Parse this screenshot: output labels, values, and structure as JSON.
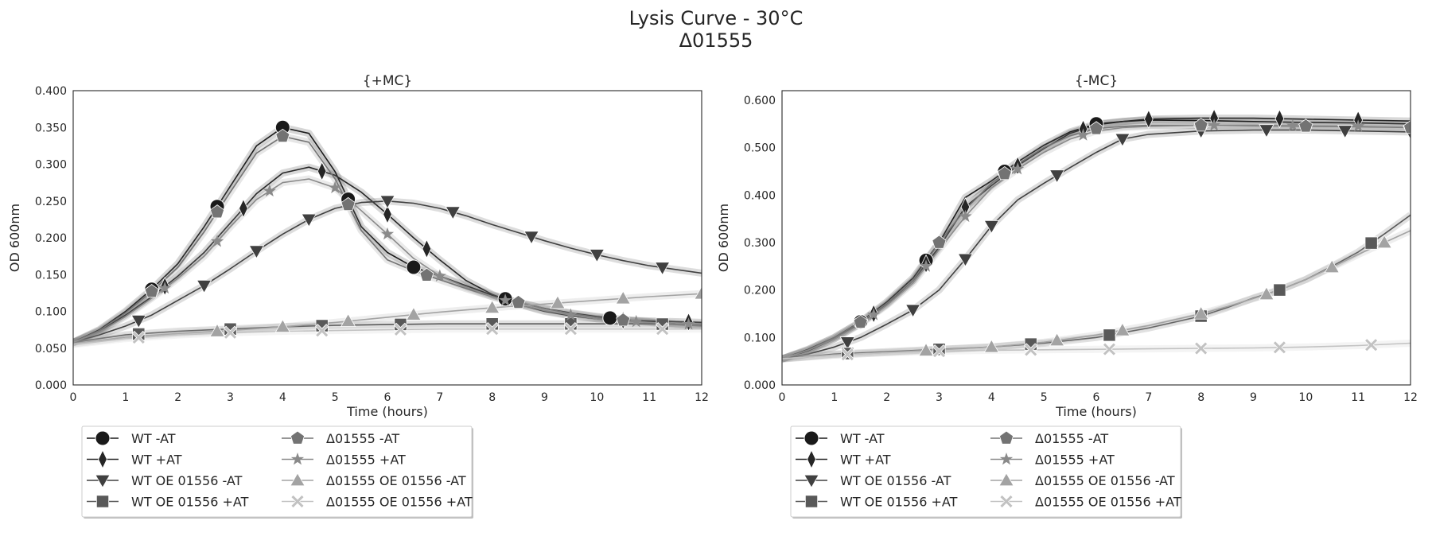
{
  "figure": {
    "title_line1": "Lysis Curve - 30°C",
    "title_line2": "Δ01555"
  },
  "legend": [
    {
      "label": "WT -AT",
      "marker": "circle",
      "color": "#1a1a1a"
    },
    {
      "label": "WT +AT",
      "marker": "diamond",
      "color": "#262626"
    },
    {
      "label": "WT OE 01556 -AT",
      "marker": "triangle-down",
      "color": "#404040"
    },
    {
      "label": "WT OE 01556 +AT",
      "marker": "square",
      "color": "#595959"
    },
    {
      "label": "Δ01555 -AT",
      "marker": "pentagon",
      "color": "#737373"
    },
    {
      "label": "Δ01555 +AT",
      "marker": "star",
      "color": "#8a8a8a"
    },
    {
      "label": "Δ01555 OE 01556 -AT",
      "marker": "triangle-up",
      "color": "#a3a3a3"
    },
    {
      "label": "Δ01555 OE 01556 +AT",
      "marker": "x",
      "color": "#c2c2c2"
    }
  ],
  "chart_data": [
    {
      "type": "line",
      "title": "{+MC}",
      "xlabel": "Time (hours)",
      "ylabel": "OD 600nm",
      "xlim": [
        0,
        12
      ],
      "ylim": [
        0,
        0.4
      ],
      "xticks": [
        0,
        1,
        2,
        3,
        4,
        5,
        6,
        7,
        8,
        9,
        10,
        11,
        12
      ],
      "yticks": [
        0,
        0.05,
        0.1,
        0.15,
        0.2,
        0.25,
        0.3,
        0.35,
        0.4
      ],
      "ytick_labels": [
        "0.000",
        "0.050",
        "0.100",
        "0.150",
        "0.200",
        "0.250",
        "0.300",
        "0.350",
        "0.400"
      ],
      "grid": false,
      "series": [
        {
          "name": "WT -AT",
          "marker_x": [
            1.5,
            2.75,
            4.0,
            5.25,
            6.5,
            8.25,
            10.25
          ],
          "x": [
            0,
            0.5,
            1,
            1.5,
            2,
            2.5,
            3,
            3.5,
            4,
            4.5,
            5,
            5.5,
            6,
            6.5,
            7,
            7.5,
            8,
            8.5,
            9,
            9.5,
            10,
            10.5,
            11,
            11.5,
            12
          ],
          "y": [
            0.058,
            0.075,
            0.1,
            0.13,
            0.165,
            0.215,
            0.27,
            0.325,
            0.35,
            0.342,
            0.29,
            0.215,
            0.18,
            0.16,
            0.148,
            0.135,
            0.122,
            0.112,
            0.104,
            0.098,
            0.093,
            0.089,
            0.086,
            0.083,
            0.081
          ]
        },
        {
          "name": "WT +AT",
          "marker_x": [
            1.75,
            3.25,
            4.75,
            6.0,
            6.75,
            10.5,
            11.75
          ],
          "x": [
            0,
            0.5,
            1,
            1.5,
            2,
            2.5,
            3,
            3.5,
            4,
            4.5,
            5,
            5.5,
            6,
            6.5,
            7,
            7.5,
            8,
            8.5,
            9,
            9.5,
            10,
            10.5,
            11,
            11.5,
            12
          ],
          "y": [
            0.058,
            0.073,
            0.095,
            0.12,
            0.148,
            0.18,
            0.22,
            0.26,
            0.288,
            0.296,
            0.285,
            0.262,
            0.232,
            0.2,
            0.17,
            0.142,
            0.123,
            0.11,
            0.1,
            0.094,
            0.09,
            0.088,
            0.087,
            0.086,
            0.085
          ]
        },
        {
          "name": "WT OE 01556 -AT",
          "marker_x": [
            1.25,
            2.5,
            3.5,
            4.5,
            6.0,
            7.25,
            8.75,
            10.0,
            11.25
          ],
          "x": [
            0,
            0.5,
            1,
            1.5,
            2,
            2.5,
            3,
            3.5,
            4,
            4.5,
            5,
            5.5,
            6,
            6.5,
            7,
            7.5,
            8,
            8.5,
            9,
            9.5,
            10,
            10.5,
            11,
            11.5,
            12
          ],
          "y": [
            0.058,
            0.068,
            0.08,
            0.095,
            0.115,
            0.135,
            0.158,
            0.182,
            0.205,
            0.225,
            0.24,
            0.248,
            0.25,
            0.247,
            0.24,
            0.23,
            0.218,
            0.207,
            0.196,
            0.186,
            0.177,
            0.169,
            0.162,
            0.157,
            0.152
          ]
        },
        {
          "name": "WT OE 01556 +AT",
          "marker_x": [
            1.25,
            3.0,
            4.75,
            6.25,
            8.0,
            9.5,
            11.25
          ],
          "x": [
            0,
            1,
            2,
            3,
            4,
            5,
            6,
            7,
            8,
            9,
            10,
            11,
            12
          ],
          "y": [
            0.058,
            0.068,
            0.073,
            0.076,
            0.079,
            0.081,
            0.082,
            0.083,
            0.083,
            0.083,
            0.083,
            0.083,
            0.082
          ]
        },
        {
          "name": "Δ01555 -AT",
          "marker_x": [
            1.5,
            2.75,
            4.0,
            5.25,
            6.75,
            8.5,
            10.5
          ],
          "x": [
            0,
            0.5,
            1,
            1.5,
            2,
            2.5,
            3,
            3.5,
            4,
            4.5,
            5,
            5.5,
            6,
            6.5,
            7,
            7.5,
            8,
            8.5,
            9,
            9.5,
            10,
            10.5,
            11,
            11.5,
            12
          ],
          "y": [
            0.058,
            0.074,
            0.098,
            0.127,
            0.16,
            0.208,
            0.262,
            0.315,
            0.338,
            0.33,
            0.28,
            0.21,
            0.17,
            0.155,
            0.143,
            0.131,
            0.12,
            0.112,
            0.104,
            0.097,
            0.092,
            0.088,
            0.085,
            0.082,
            0.08
          ]
        },
        {
          "name": "Δ01555 +AT",
          "marker_x": [
            1.75,
            2.75,
            3.75,
            5.0,
            6.0,
            7.0,
            8.25,
            9.5,
            10.75,
            11.75
          ],
          "x": [
            0,
            0.5,
            1,
            1.5,
            2,
            2.5,
            3,
            3.5,
            4,
            4.5,
            5,
            5.5,
            6,
            6.5,
            7,
            7.5,
            8,
            8.5,
            9,
            9.5,
            10,
            10.5,
            11,
            11.5,
            12
          ],
          "y": [
            0.058,
            0.072,
            0.093,
            0.118,
            0.145,
            0.175,
            0.215,
            0.252,
            0.275,
            0.28,
            0.268,
            0.237,
            0.205,
            0.172,
            0.148,
            0.133,
            0.12,
            0.11,
            0.101,
            0.095,
            0.09,
            0.087,
            0.085,
            0.083,
            0.082
          ]
        },
        {
          "name": "Δ01555 OE 01556 -AT",
          "marker_x": [
            2.75,
            4.0,
            5.25,
            6.5,
            8.0,
            9.25,
            10.5,
            12.0
          ],
          "x": [
            0,
            1,
            2,
            3,
            4,
            5,
            6,
            7,
            8,
            9,
            10,
            11,
            12
          ],
          "y": [
            0.056,
            0.065,
            0.07,
            0.074,
            0.079,
            0.085,
            0.092,
            0.099,
            0.105,
            0.11,
            0.115,
            0.12,
            0.124
          ]
        },
        {
          "name": "Δ01555 OE 01556 +AT",
          "marker_x": [
            1.25,
            3.0,
            4.75,
            6.25,
            8.0,
            9.5,
            11.25
          ],
          "x": [
            0,
            1,
            2,
            3,
            4,
            5,
            6,
            7,
            8,
            9,
            10,
            11,
            12
          ],
          "y": [
            0.055,
            0.063,
            0.068,
            0.071,
            0.073,
            0.074,
            0.075,
            0.076,
            0.076,
            0.076,
            0.076,
            0.076,
            0.076
          ]
        }
      ]
    },
    {
      "type": "line",
      "title": "{-MC}",
      "xlabel": "Time (hours)",
      "ylabel": "OD 600nm",
      "xlim": [
        0,
        12
      ],
      "ylim": [
        0,
        0.62
      ],
      "xticks": [
        0,
        1,
        2,
        3,
        4,
        5,
        6,
        7,
        8,
        9,
        10,
        11,
        12
      ],
      "yticks": [
        0,
        0.1,
        0.2,
        0.3,
        0.4,
        0.5,
        0.6
      ],
      "ytick_labels": [
        "0.000",
        "0.100",
        "0.200",
        "0.300",
        "0.400",
        "0.500",
        "0.600"
      ],
      "grid": false,
      "series": [
        {
          "name": "WT -AT",
          "marker_x": [
            1.5,
            2.75,
            4.25,
            6.0
          ],
          "x": [
            0,
            0.5,
            1,
            1.5,
            2,
            2.5,
            3,
            3.5,
            4,
            4.5,
            5,
            5.5,
            6,
            6.5,
            7,
            8,
            9,
            10,
            11,
            12
          ],
          "y": [
            0.055,
            0.075,
            0.1,
            0.133,
            0.175,
            0.225,
            0.3,
            0.395,
            0.43,
            0.47,
            0.505,
            0.533,
            0.55,
            0.555,
            0.558,
            0.557,
            0.555,
            0.553,
            0.552,
            0.55
          ]
        },
        {
          "name": "WT +AT",
          "marker_x": [
            1.75,
            2.75,
            3.5,
            4.5,
            5.75,
            7.0,
            8.25,
            9.5,
            11.0
          ],
          "x": [
            0,
            0.5,
            1,
            1.5,
            2,
            2.5,
            3,
            3.5,
            4,
            4.5,
            5,
            5.5,
            6,
            6.5,
            7,
            8,
            9,
            10,
            11,
            12
          ],
          "y": [
            0.055,
            0.072,
            0.097,
            0.13,
            0.17,
            0.22,
            0.29,
            0.375,
            0.42,
            0.462,
            0.498,
            0.53,
            0.548,
            0.555,
            0.56,
            0.562,
            0.562,
            0.56,
            0.558,
            0.556
          ]
        },
        {
          "name": "WT OE 01556 -AT",
          "marker_x": [
            1.25,
            2.5,
            3.5,
            4.0,
            5.25,
            6.5,
            8.0,
            9.25,
            10.75,
            12.0
          ],
          "x": [
            0,
            0.5,
            1,
            1.5,
            2,
            2.5,
            3,
            3.5,
            4,
            4.5,
            5,
            5.5,
            6,
            6.5,
            7,
            8,
            9,
            10,
            11,
            12
          ],
          "y": [
            0.055,
            0.065,
            0.08,
            0.1,
            0.128,
            0.158,
            0.2,
            0.265,
            0.335,
            0.39,
            0.425,
            0.458,
            0.49,
            0.518,
            0.528,
            0.535,
            0.537,
            0.537,
            0.535,
            0.533
          ]
        },
        {
          "name": "WT OE 01556 +AT",
          "marker_x": [
            1.25,
            3.0,
            4.75,
            6.25,
            8.0,
            9.5,
            11.25
          ],
          "x": [
            0,
            1,
            2,
            3,
            4,
            5,
            6,
            7,
            8,
            8.5,
            9,
            9.5,
            10,
            10.5,
            11,
            11.5,
            12
          ],
          "y": [
            0.055,
            0.065,
            0.07,
            0.075,
            0.08,
            0.088,
            0.1,
            0.12,
            0.145,
            0.163,
            0.183,
            0.2,
            0.222,
            0.25,
            0.28,
            0.318,
            0.358
          ]
        },
        {
          "name": "Δ01555 -AT",
          "marker_x": [
            1.5,
            3.0,
            4.25,
            6.0,
            8.0,
            10.0,
            12.0
          ],
          "x": [
            0,
            0.5,
            1,
            1.5,
            2,
            2.5,
            3,
            3.5,
            4,
            4.5,
            5,
            5.5,
            6,
            6.5,
            7,
            8,
            9,
            10,
            11,
            12
          ],
          "y": [
            0.055,
            0.074,
            0.1,
            0.132,
            0.172,
            0.22,
            0.3,
            0.37,
            0.425,
            0.465,
            0.5,
            0.525,
            0.54,
            0.545,
            0.547,
            0.547,
            0.546,
            0.545,
            0.544,
            0.542
          ]
        },
        {
          "name": "Δ01555 +AT",
          "marker_x": [
            1.75,
            2.75,
            3.5,
            4.5,
            5.75,
            8.25,
            9.75,
            11.0
          ],
          "x": [
            0,
            0.5,
            1,
            1.5,
            2,
            2.5,
            3,
            3.5,
            4,
            4.5,
            5,
            5.5,
            6,
            6.5,
            7,
            8,
            9,
            10,
            11,
            12
          ],
          "y": [
            0.055,
            0.073,
            0.097,
            0.128,
            0.168,
            0.215,
            0.285,
            0.355,
            0.415,
            0.455,
            0.49,
            0.518,
            0.535,
            0.542,
            0.545,
            0.547,
            0.547,
            0.546,
            0.545,
            0.543
          ]
        },
        {
          "name": "Δ01555 OE 01556 -AT",
          "marker_x": [
            2.75,
            4.0,
            5.25,
            6.5,
            8.0,
            9.25,
            10.5,
            11.5
          ],
          "x": [
            0,
            1,
            2,
            3,
            4,
            5,
            6,
            7,
            8,
            8.5,
            9,
            9.5,
            10,
            10.5,
            11,
            11.5,
            12
          ],
          "y": [
            0.055,
            0.063,
            0.068,
            0.074,
            0.08,
            0.09,
            0.105,
            0.125,
            0.15,
            0.165,
            0.182,
            0.2,
            0.222,
            0.248,
            0.275,
            0.3,
            0.325
          ]
        },
        {
          "name": "Δ01555 OE 01556 +AT",
          "marker_x": [
            1.25,
            3.0,
            4.75,
            6.25,
            8.0,
            9.5,
            11.25
          ],
          "x": [
            0,
            1,
            2,
            3,
            4,
            5,
            6,
            7,
            8,
            9,
            10,
            11,
            12
          ],
          "y": [
            0.055,
            0.063,
            0.068,
            0.071,
            0.073,
            0.074,
            0.075,
            0.076,
            0.077,
            0.078,
            0.08,
            0.083,
            0.088
          ]
        }
      ]
    }
  ]
}
